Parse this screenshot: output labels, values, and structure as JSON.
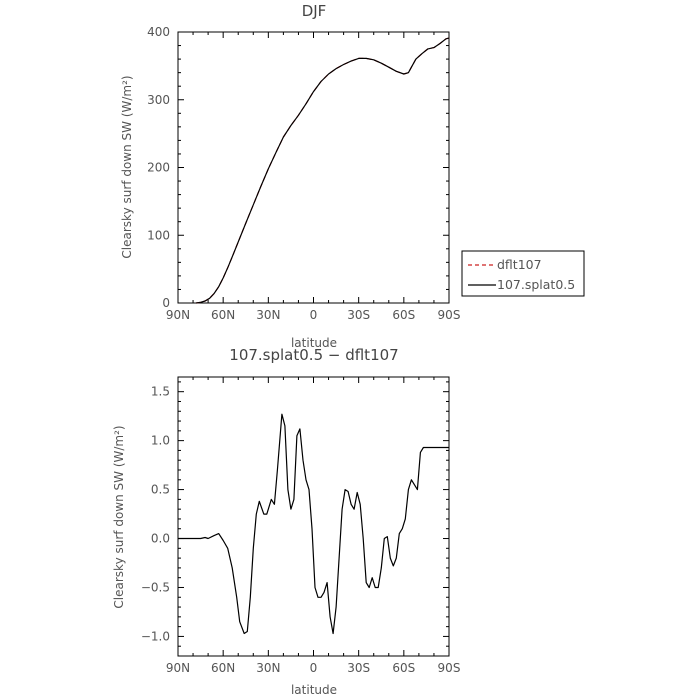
{
  "chart_data": [
    {
      "type": "line",
      "title": "DJF",
      "xlabel": "latitude",
      "ylabel": "Clearsky surf down SW (W/m²)",
      "xlim": [
        90,
        -90
      ],
      "ylim": [
        0,
        400
      ],
      "x_ticks": [
        90,
        60,
        30,
        0,
        -30,
        -60,
        -90
      ],
      "x_tick_labels": [
        "90N",
        "60N",
        "30N",
        "0",
        "30S",
        "60S",
        "90S"
      ],
      "y_ticks": [
        0,
        100,
        200,
        300,
        400
      ],
      "y_tick_labels": [
        "0",
        "100",
        "200",
        "300",
        "400"
      ],
      "legend_position": "outside-right",
      "series": [
        {
          "name": "dflt107",
          "color": "#cc2222",
          "style": "dashed",
          "x": [
            78,
            75,
            72,
            69,
            66,
            63,
            60,
            57,
            54,
            50,
            45,
            40,
            35,
            30,
            25,
            20,
            15,
            10,
            5,
            0,
            -5,
            -10,
            -15,
            -20,
            -25,
            -30,
            -35,
            -40,
            -45,
            -50,
            -55,
            -60,
            -63,
            -65,
            -68,
            -72,
            -76,
            -80,
            -84,
            -88,
            -90
          ],
          "y": [
            0,
            1,
            3,
            7,
            14,
            24,
            37,
            52,
            68,
            90,
            118,
            145,
            172,
            198,
            222,
            245,
            262,
            277,
            294,
            312,
            327,
            338,
            346,
            352,
            357,
            361,
            361,
            359,
            354,
            348,
            342,
            338,
            340,
            348,
            360,
            368,
            375,
            377,
            383,
            390,
            391
          ]
        },
        {
          "name": "107.splat0.5",
          "color": "#000000",
          "style": "solid",
          "x": [
            78,
            75,
            72,
            69,
            66,
            63,
            60,
            57,
            54,
            50,
            45,
            40,
            35,
            30,
            25,
            20,
            15,
            10,
            5,
            0,
            -5,
            -10,
            -15,
            -20,
            -25,
            -30,
            -35,
            -40,
            -45,
            -50,
            -55,
            -60,
            -63,
            -65,
            -68,
            -72,
            -76,
            -80,
            -84,
            -88,
            -90
          ],
          "y": [
            0,
            1,
            3,
            7,
            14,
            24,
            37,
            52,
            68,
            90,
            118,
            145,
            172,
            198,
            222,
            245,
            262,
            277,
            294,
            312,
            327,
            338,
            346,
            352,
            357,
            361,
            361,
            359,
            354,
            348,
            342,
            338,
            340,
            348,
            360,
            368,
            375,
            377,
            383,
            390,
            391
          ]
        }
      ]
    },
    {
      "type": "line",
      "title": "107.splat0.5 − dflt107",
      "xlabel": "latitude",
      "ylabel": "Clearsky surf down SW (W/m²)",
      "xlim": [
        90,
        -90
      ],
      "ylim": [
        -1.2,
        1.65
      ],
      "x_ticks": [
        90,
        60,
        30,
        0,
        -30,
        -60,
        -90
      ],
      "x_tick_labels": [
        "90N",
        "60N",
        "30N",
        "0",
        "30S",
        "60S",
        "90S"
      ],
      "y_ticks": [
        -1.0,
        -0.5,
        0.0,
        0.5,
        1.0,
        1.5
      ],
      "y_tick_labels": [
        "−1.0",
        "−0.5",
        "0.0",
        "0.5",
        "1.0",
        "1.5"
      ],
      "series": [
        {
          "name": "",
          "color": "#000000",
          "style": "solid",
          "x": [
            90,
            85,
            80,
            75,
            72,
            70,
            66,
            63,
            60,
            57,
            54,
            51,
            49,
            46,
            44,
            42,
            40,
            38,
            36,
            33,
            31,
            28,
            26,
            24,
            21,
            19,
            17,
            15,
            13,
            11,
            9,
            7,
            5,
            3,
            1,
            -1,
            -3,
            -5,
            -7,
            -9,
            -11,
            -13,
            -15,
            -17,
            -19,
            -21,
            -23,
            -25,
            -27,
            -29,
            -31,
            -33,
            -35,
            -37,
            -39,
            -41,
            -43,
            -45,
            -47,
            -49,
            -51,
            -53,
            -55,
            -57,
            -59,
            -61,
            -63,
            -65,
            -67,
            -69,
            -71,
            -73,
            -75,
            -77,
            -79,
            -81,
            -83,
            -85,
            -87,
            -89,
            -90
          ],
          "y": [
            0,
            0,
            0,
            0,
            0.01,
            0,
            0.03,
            0.05,
            -0.02,
            -0.1,
            -0.3,
            -0.6,
            -0.85,
            -0.97,
            -0.95,
            -0.6,
            -0.1,
            0.25,
            0.38,
            0.25,
            0.25,
            0.4,
            0.35,
            0.7,
            1.27,
            1.15,
            0.5,
            0.3,
            0.4,
            1.05,
            1.12,
            0.8,
            0.6,
            0.5,
            0.1,
            -0.5,
            -0.6,
            -0.6,
            -0.55,
            -0.45,
            -0.8,
            -0.97,
            -0.7,
            -0.2,
            0.3,
            0.5,
            0.48,
            0.35,
            0.3,
            0.47,
            0.35,
            0.0,
            -0.45,
            -0.5,
            -0.4,
            -0.5,
            -0.5,
            -0.3,
            0.0,
            0.02,
            -0.2,
            -0.28,
            -0.2,
            0.05,
            0.1,
            0.2,
            0.5,
            0.6,
            0.55,
            0.5,
            0.88,
            0.93,
            0.93,
            0.93,
            0.93,
            0.93,
            0.93,
            0.93,
            0.93,
            0.93,
            0.93
          ]
        }
      ]
    }
  ]
}
